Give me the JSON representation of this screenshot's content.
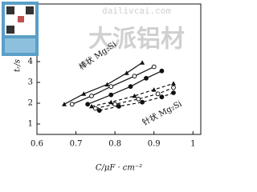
{
  "chart_data": {
    "type": "line",
    "xlabel": "C/μF · cm⁻²",
    "ylabel": "tᵣ/s",
    "xlim": [
      0.6,
      1.02
    ],
    "ylim": [
      0.5,
      6.77
    ],
    "xticks": [
      0.6,
      0.7,
      0.8,
      0.9,
      1.0
    ],
    "yticks": [
      1,
      2,
      3,
      4
    ],
    "annotations": [
      "棒状 Mg₂Si",
      "针状 Mg₂Si"
    ],
    "watermark": [
      "dailivcai.com",
      "大派铝材"
    ],
    "series": [
      {
        "color": "#111",
        "marker": "triangle",
        "dash": false,
        "x": [
          0.67,
          0.72,
          0.78,
          0.83,
          0.87
        ],
        "values": [
          1.95,
          2.45,
          2.9,
          3.45,
          3.95
        ]
      },
      {
        "color": "#111",
        "marker": "open-circle",
        "dash": false,
        "x": [
          0.69,
          0.74,
          0.79,
          0.85,
          0.9
        ],
        "values": [
          1.95,
          2.35,
          2.8,
          3.3,
          3.75
        ]
      },
      {
        "color": "#111",
        "marker": "circle",
        "dash": false,
        "x": [
          0.73,
          0.79,
          0.84,
          0.88,
          0.92
        ],
        "values": [
          1.95,
          2.4,
          2.8,
          3.2,
          3.55
        ]
      },
      {
        "color": "#111",
        "marker": "triangle",
        "dash": true,
        "x": [
          0.74,
          0.79,
          0.85,
          0.9,
          0.95
        ],
        "values": [
          1.85,
          2.05,
          2.35,
          2.65,
          2.95
        ]
      },
      {
        "color": "#111",
        "marker": "open-circle",
        "dash": true,
        "x": [
          0.75,
          0.8,
          0.86,
          0.91,
          0.95
        ],
        "values": [
          1.75,
          1.95,
          2.2,
          2.45,
          2.75
        ]
      },
      {
        "color": "#111",
        "marker": "circle",
        "dash": true,
        "x": [
          0.76,
          0.81,
          0.87,
          0.92,
          0.95
        ],
        "values": [
          1.65,
          1.85,
          2.05,
          2.3,
          2.5
        ]
      }
    ]
  }
}
